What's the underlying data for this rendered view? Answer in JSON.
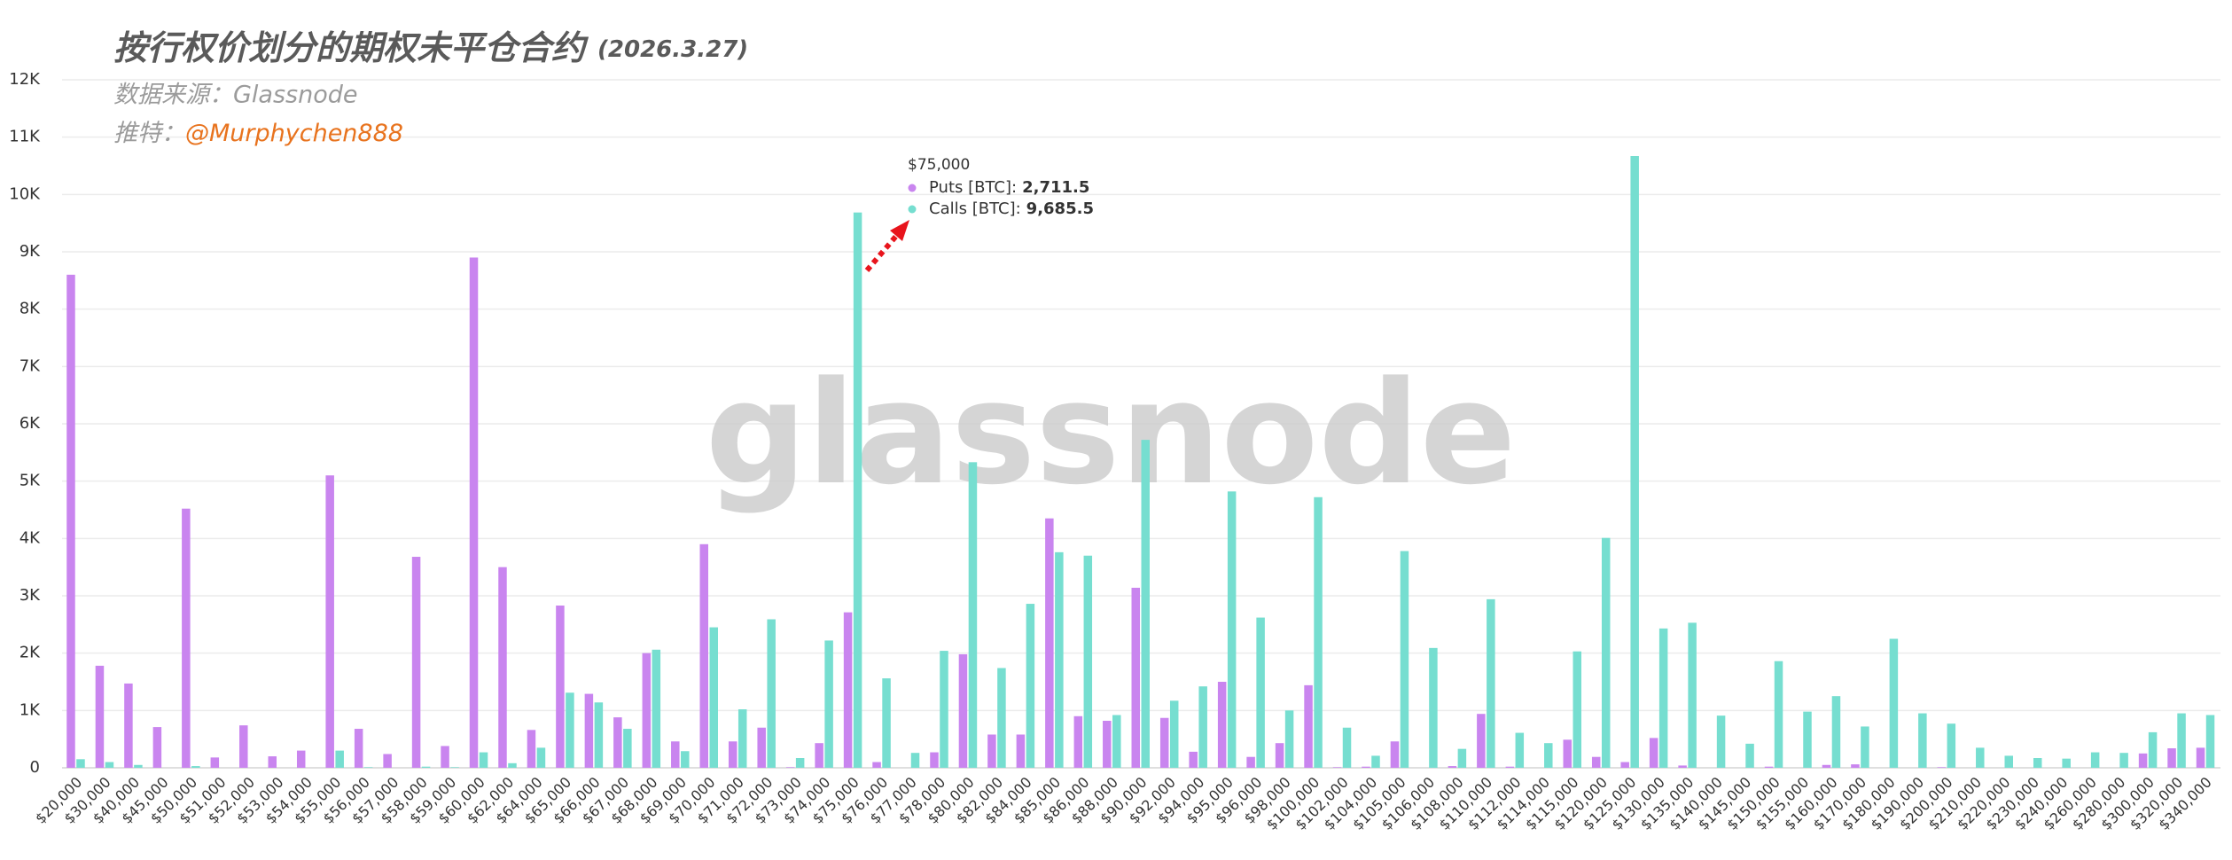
{
  "chart_data": {
    "type": "bar",
    "title": "按行权价划分的期权未平仓合约",
    "title_date": "(2026.3.27)",
    "source": "数据来源：Glassnode",
    "twitter_label": "推特：",
    "twitter_handle": "@Murphychen888",
    "watermark": "glassnode",
    "categories": [
      "$20,000",
      "$30,000",
      "$40,000",
      "$45,000",
      "$50,000",
      "$51,000",
      "$52,000",
      "$53,000",
      "$54,000",
      "$55,000",
      "$56,000",
      "$57,000",
      "$58,000",
      "$59,000",
      "$60,000",
      "$62,000",
      "$64,000",
      "$65,000",
      "$66,000",
      "$67,000",
      "$68,000",
      "$69,000",
      "$70,000",
      "$71,000",
      "$72,000",
      "$73,000",
      "$74,000",
      "$75,000",
      "$76,000",
      "$77,000",
      "$78,000",
      "$80,000",
      "$82,000",
      "$84,000",
      "$85,000",
      "$86,000",
      "$88,000",
      "$90,000",
      "$92,000",
      "$94,000",
      "$95,000",
      "$96,000",
      "$98,000",
      "$100,000",
      "$102,000",
      "$104,000",
      "$105,000",
      "$106,000",
      "$108,000",
      "$110,000",
      "$112,000",
      "$114,000",
      "$115,000",
      "$120,000",
      "$125,000",
      "$130,000",
      "$135,000",
      "$140,000",
      "$145,000",
      "$150,000",
      "$155,000",
      "$160,000",
      "$170,000",
      "$180,000",
      "$190,000",
      "$200,000",
      "$210,000",
      "$220,000",
      "$230,000",
      "$240,000",
      "$260,000",
      "$280,000",
      "$300,000",
      "$320,000",
      "$340,000"
    ],
    "series": [
      {
        "name": "Puts [BTC]",
        "color": "#c985ef",
        "values": [
          8600,
          1780,
          1470,
          710,
          4520,
          180,
          740,
          200,
          300,
          5100,
          680,
          240,
          3680,
          380,
          8900,
          3500,
          660,
          2830,
          1290,
          880,
          2000,
          460,
          3900,
          460,
          700,
          10,
          430,
          2711.5,
          100,
          0,
          270,
          1980,
          580,
          580,
          4350,
          900,
          820,
          3140,
          870,
          280,
          1500,
          190,
          430,
          1440,
          10,
          20,
          460,
          0,
          30,
          940,
          20,
          0,
          490,
          190,
          100,
          520,
          40,
          0,
          0,
          20,
          0,
          50,
          60,
          0,
          0,
          10,
          0,
          0,
          0,
          0,
          0,
          0,
          250,
          340,
          350
        ]
      },
      {
        "name": "Calls [BTC]",
        "color": "#76ded0",
        "values": [
          150,
          100,
          50,
          0,
          30,
          0,
          0,
          0,
          0,
          300,
          10,
          0,
          20,
          10,
          270,
          80,
          350,
          1310,
          1140,
          680,
          2060,
          290,
          2450,
          1020,
          2590,
          170,
          2220,
          9685.5,
          1560,
          260,
          2040,
          5330,
          1740,
          2860,
          3760,
          3700,
          920,
          5720,
          1170,
          1420,
          4820,
          2620,
          1000,
          4720,
          700,
          210,
          3780,
          2090,
          330,
          2940,
          610,
          430,
          2030,
          4010,
          10670,
          2430,
          2530,
          910,
          420,
          1860,
          980,
          1250,
          720,
          2250,
          950,
          770,
          350,
          210,
          170,
          160,
          270,
          260,
          620,
          950,
          920
        ]
      }
    ],
    "ylim": [
      0,
      12000
    ],
    "yticks": [
      0,
      {
        "value": 1000,
        "label": "1K"
      },
      {
        "value": 2000,
        "label": "2K"
      },
      {
        "value": 3000,
        "label": "3K"
      },
      {
        "value": 4000,
        "label": "4K"
      },
      {
        "value": 5000,
        "label": "5K"
      },
      {
        "value": 6000,
        "label": "6K"
      },
      {
        "value": 7000,
        "label": "7K"
      },
      {
        "value": 8000,
        "label": "8K"
      },
      {
        "value": 9000,
        "label": "9K"
      },
      {
        "value": 10000,
        "label": "10K"
      },
      {
        "value": 11000,
        "label": "11K"
      },
      {
        "value": 12000,
        "label": "12K"
      }
    ],
    "grid": true,
    "tooltip": {
      "title": "$75,000",
      "rows": [
        {
          "label": "Puts [BTC]:",
          "value": "2,711.5",
          "color": "#c985ef"
        },
        {
          "label": "Calls [BTC]:",
          "value": "9,685.5",
          "color": "#76ded0"
        }
      ]
    }
  }
}
